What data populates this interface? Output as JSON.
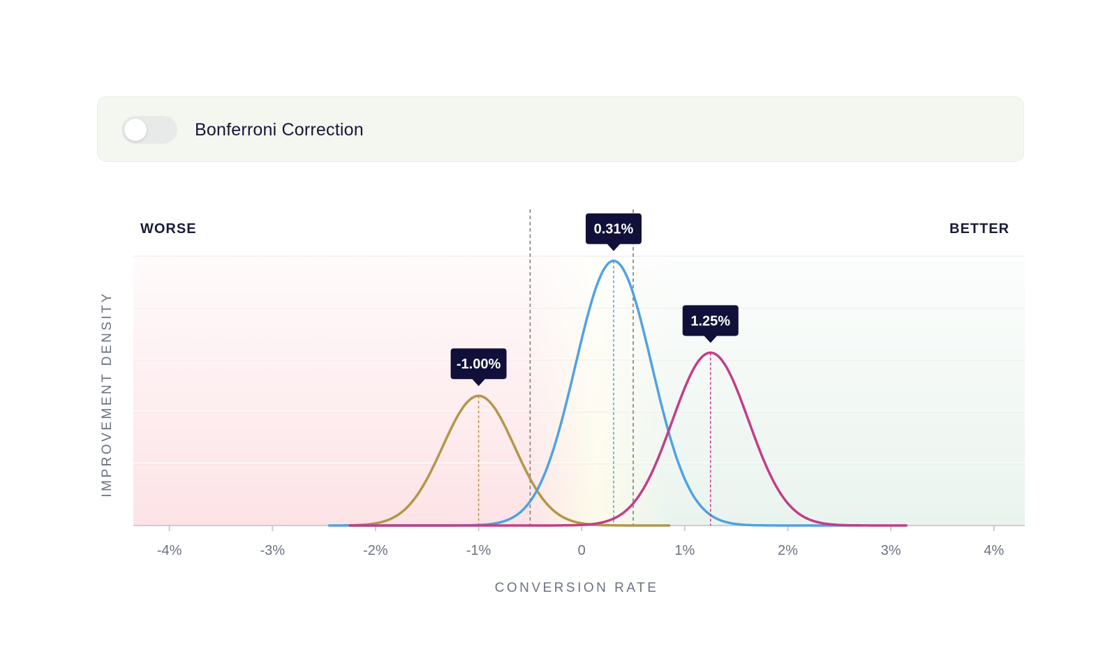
{
  "toggle": {
    "label": "Bonferroni Correction",
    "checked": false
  },
  "chart_data": {
    "type": "line",
    "xlabel": "CONVERSION RATE",
    "ylabel": "IMPROVEMENT DENSITY",
    "left_label": "WORSE",
    "right_label": "BETTER",
    "xlim": [
      -4.35,
      4.3
    ],
    "x_ticks": [
      -4,
      -3,
      -2,
      -1,
      0,
      1,
      2,
      3,
      4
    ],
    "x_tick_labels": [
      "-4%",
      "-3%",
      "-2%",
      "-1%",
      "0",
      "1%",
      "2%",
      "3%",
      "4%"
    ],
    "grid": "horizontal",
    "reference_band": [
      -0.5,
      0.5
    ],
    "colors": {
      "axis": "#c9ccd6",
      "tick_text": "#6b7180",
      "title_text": "#1a1a3a",
      "marker_bg": "#10103a",
      "marker_text": "#ffffff",
      "worse_tint": "#fde3e6",
      "neutral_tint": "#fdfbe9",
      "better_tint": "#eaf4ee"
    },
    "series": [
      {
        "color": "#b39648",
        "mean": -1.0,
        "sd": 0.35,
        "peak": 0.48,
        "x_range": [
          -2.3,
          0.85
        ],
        "marker_label": "-1.00%"
      },
      {
        "color": "#4fa2e3",
        "mean": 0.31,
        "sd": 0.37,
        "peak": 0.98,
        "x_range": [
          -2.45,
          2.7
        ],
        "marker_label": "0.31%"
      },
      {
        "color": "#c43c86",
        "mean": 1.25,
        "sd": 0.37,
        "peak": 0.64,
        "x_range": [
          -2.25,
          3.15
        ],
        "marker_label": "1.25%"
      }
    ]
  }
}
